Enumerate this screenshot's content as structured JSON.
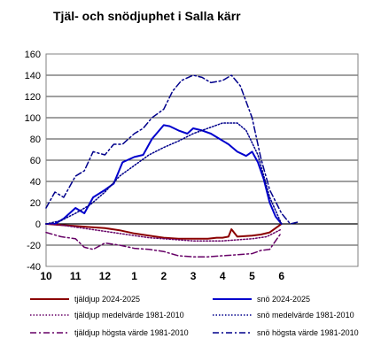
{
  "chart_data": {
    "type": "line",
    "title": "Tjäl- och snödjuphet i Salla kärr",
    "xlabel": "",
    "ylabel": "",
    "xlim": [
      0,
      10.6
    ],
    "ylim": [
      -40,
      160
    ],
    "yticks": [
      -40,
      -20,
      0,
      20,
      40,
      60,
      80,
      100,
      120,
      140,
      160
    ],
    "xticks": [
      {
        "pos": 0,
        "label": "10"
      },
      {
        "pos": 1,
        "label": "11"
      },
      {
        "pos": 2,
        "label": "12"
      },
      {
        "pos": 3,
        "label": "1"
      },
      {
        "pos": 4,
        "label": "2"
      },
      {
        "pos": 5,
        "label": "3"
      },
      {
        "pos": 6,
        "label": "4"
      },
      {
        "pos": 7,
        "label": "5"
      },
      {
        "pos": 8,
        "label": "6"
      }
    ],
    "grid": "horizontal",
    "legend_position": "bottom",
    "series": [
      {
        "name": "tjäldjup 2024-2025",
        "color": "#8B0000",
        "style": "solid",
        "width": 2,
        "x": [
          0,
          0.5,
          1,
          1.5,
          2,
          2.5,
          3,
          3.5,
          4,
          4.5,
          5,
          5.5,
          5.8,
          6.0,
          6.2,
          6.3,
          6.5,
          7,
          7.3,
          7.6,
          8.0
        ],
        "y": [
          0,
          -1,
          -2,
          -3,
          -4,
          -6,
          -9,
          -11,
          -13,
          -14,
          -14,
          -14,
          -13,
          -13,
          -12,
          -5,
          -12,
          -11,
          -10,
          -8,
          0
        ]
      },
      {
        "name": "snö 2024-2025",
        "color": "#0000CD",
        "style": "solid",
        "width": 2,
        "x": [
          0,
          0.3,
          0.6,
          1.0,
          1.3,
          1.6,
          2.0,
          2.3,
          2.6,
          3.0,
          3.3,
          3.6,
          4.0,
          4.2,
          4.5,
          4.8,
          5.0,
          5.3,
          5.6,
          5.9,
          6.2,
          6.5,
          6.8,
          7.0,
          7.2,
          7.4,
          7.6,
          7.8,
          8.0
        ],
        "y": [
          0,
          0,
          5,
          15,
          10,
          25,
          32,
          38,
          58,
          63,
          65,
          80,
          93,
          92,
          88,
          85,
          90,
          88,
          85,
          80,
          75,
          68,
          64,
          68,
          58,
          42,
          20,
          7,
          0
        ]
      },
      {
        "name": "tjäldjup medelvärde 1981-2010",
        "color": "#660066",
        "style": "dotted",
        "width": 1.5,
        "x": [
          0,
          0.5,
          1,
          1.5,
          2,
          2.5,
          3,
          3.5,
          4,
          4.5,
          5,
          5.5,
          6,
          6.5,
          7,
          7.5,
          8
        ],
        "y": [
          0,
          -1,
          -3,
          -5,
          -7,
          -9,
          -11,
          -13,
          -14,
          -15,
          -16,
          -16,
          -16,
          -15,
          -14,
          -12,
          -5
        ]
      },
      {
        "name": "snö medelvärde 1981-2010",
        "color": "#00008B",
        "style": "dotted",
        "width": 1.5,
        "x": [
          0,
          0.5,
          1,
          1.5,
          2,
          2.5,
          3,
          3.5,
          4,
          4.5,
          5,
          5.5,
          6,
          6.5,
          6.8,
          7.2,
          7.6,
          8
        ],
        "y": [
          0,
          3,
          10,
          18,
          30,
          45,
          55,
          65,
          72,
          78,
          85,
          90,
          95,
          95,
          88,
          65,
          25,
          0
        ]
      },
      {
        "name": "tjäldjup högsta värde 1981-2010",
        "color": "#660066",
        "style": "dashdot",
        "width": 1.5,
        "x": [
          0,
          0.5,
          1,
          1.3,
          1.6,
          2,
          2.5,
          3,
          3.5,
          4,
          4.5,
          5,
          5.5,
          6,
          6.5,
          7,
          7.3,
          7.6,
          8
        ],
        "y": [
          -8,
          -12,
          -14,
          -22,
          -24,
          -18,
          -20,
          -23,
          -24,
          -26,
          -30,
          -31,
          -31,
          -30,
          -29,
          -28,
          -25,
          -24,
          -8
        ]
      },
      {
        "name": "snö högsta värde 1981-2010",
        "color": "#00008B",
        "style": "dashdot",
        "width": 1.5,
        "x": [
          0,
          0.3,
          0.6,
          1.0,
          1.3,
          1.6,
          2.0,
          2.3,
          2.6,
          3.0,
          3.3,
          3.6,
          4.0,
          4.3,
          4.6,
          5.0,
          5.3,
          5.6,
          6.0,
          6.3,
          6.6,
          7.0,
          7.3,
          7.6,
          8.0,
          8.3,
          8.6
        ],
        "y": [
          15,
          30,
          25,
          45,
          50,
          68,
          65,
          75,
          75,
          85,
          90,
          100,
          108,
          125,
          135,
          140,
          138,
          133,
          135,
          140,
          130,
          100,
          62,
          32,
          10,
          0,
          2
        ]
      }
    ]
  }
}
